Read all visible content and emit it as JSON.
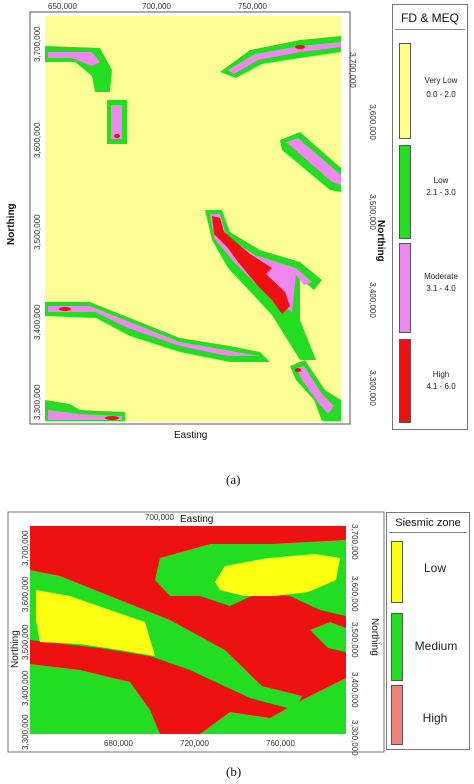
{
  "map_a": {
    "top_axis": [
      "650,000",
      "700,000",
      "750,000"
    ],
    "bottom_axis_label": "Easting",
    "left_axis_label": "Northing",
    "right_axis_label": "Northing",
    "y_ticks": [
      "3,700,000",
      "3,600,000",
      "3,500,000",
      "3,400,000",
      "3,300,000"
    ],
    "legend": {
      "title": "FD & MEQ",
      "classes": [
        {
          "name": "Very Low",
          "range": "0.0 - 2.0",
          "color": "#ffff88"
        },
        {
          "name": "Low",
          "range": "2.1 - 3.0",
          "color": "#22dd22"
        },
        {
          "name": "Moderate",
          "range": "3.1 - 4.0",
          "color": "#ee88ee"
        },
        {
          "name": "High",
          "range": "4.1 - 6.0",
          "color": "#ee1111"
        }
      ]
    },
    "caption": "(a)"
  },
  "map_b": {
    "top_axis_value": "700,000",
    "top_axis_label": "Easting",
    "bottom_axis": [
      "680,000",
      "720,000",
      "760,000"
    ],
    "left_axis_label": "Northing",
    "right_axis_label": "Northing",
    "y_ticks": [
      "3,700,000",
      "3,600,000",
      "3,500,000",
      "3,400,000",
      "3,300,000"
    ],
    "legend": {
      "title": "Siesmic zone",
      "classes": [
        {
          "name": "Low",
          "color": "#ffff11"
        },
        {
          "name": "Medium",
          "color": "#22dd22"
        },
        {
          "name": "High",
          "color": "#f08080"
        }
      ]
    },
    "caption": "(b)"
  }
}
